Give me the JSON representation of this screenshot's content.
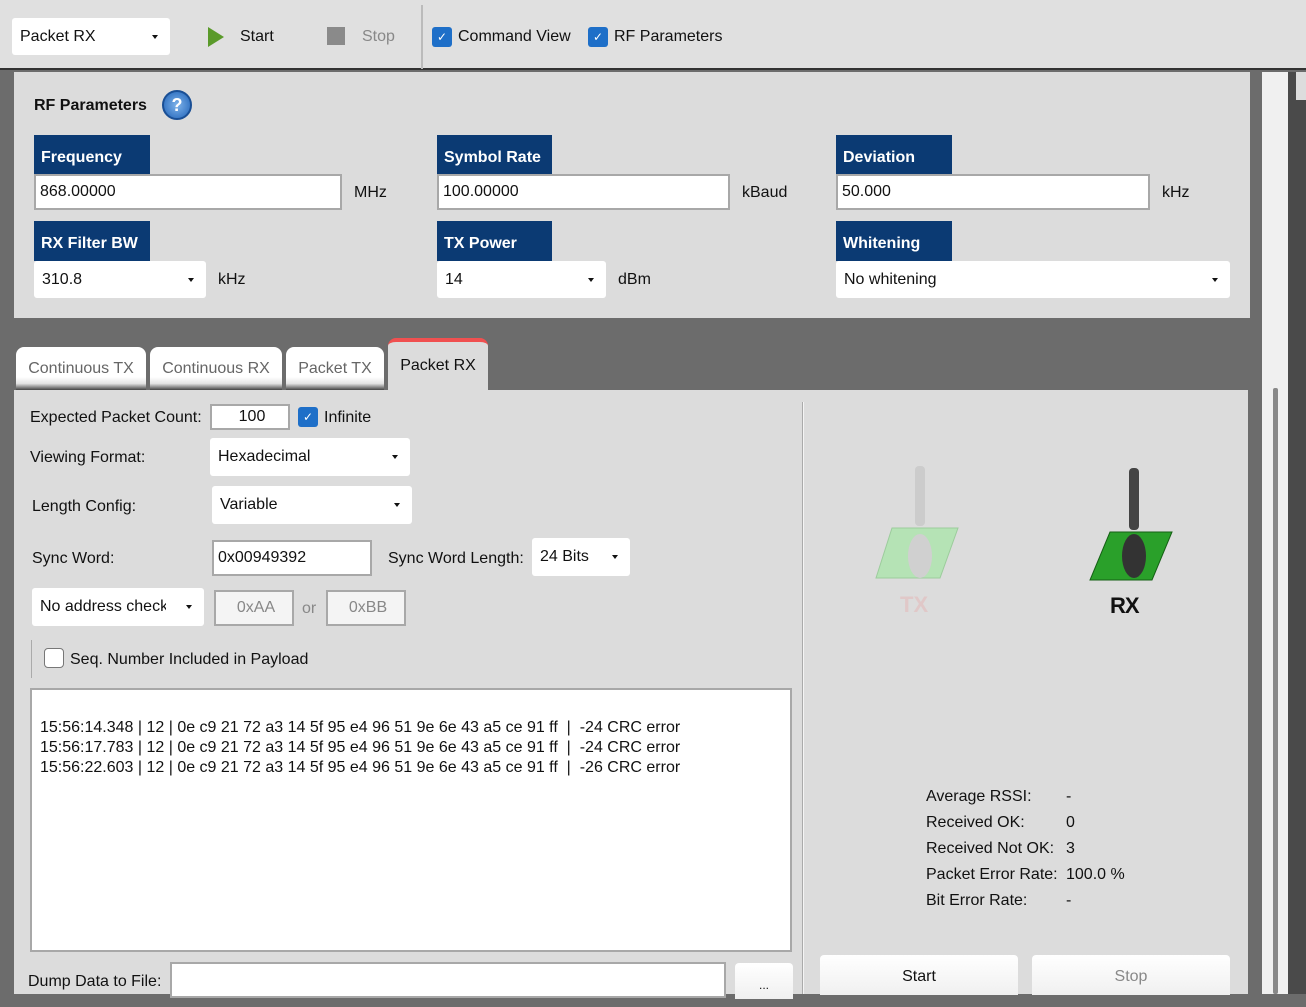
{
  "toolbar": {
    "mode": "Packet RX",
    "start": "Start",
    "stop": "Stop",
    "command_view": "Command View",
    "rf_parameters": "RF Parameters",
    "command_view_checked": true,
    "rf_parameters_checked": true
  },
  "rf": {
    "title": "RF Parameters",
    "frequency": {
      "label": "Frequency",
      "value": "868.00000",
      "unit": "MHz"
    },
    "symbol_rate": {
      "label": "Symbol Rate",
      "value": "100.00000",
      "unit": "kBaud"
    },
    "deviation": {
      "label": "Deviation",
      "value": "50.000",
      "unit": "kHz"
    },
    "rx_filter_bw": {
      "label": "RX Filter BW",
      "value": "310.8",
      "unit": "kHz"
    },
    "tx_power": {
      "label": "TX Power",
      "value": "14",
      "unit": "dBm"
    },
    "whitening": {
      "label": "Whitening",
      "value": "No whitening"
    }
  },
  "tabs": [
    "Continuous TX",
    "Continuous RX",
    "Packet TX",
    "Packet RX"
  ],
  "active_tab": "Packet RX",
  "packet_rx": {
    "expected_count_label": "Expected Packet Count:",
    "expected_count": "100",
    "infinite": "Infinite",
    "infinite_checked": true,
    "viewing_format_label": "Viewing Format:",
    "viewing_format": "Hexadecimal",
    "length_config_label": "Length Config:",
    "length_config": "Variable",
    "sync_word_label": "Sync Word:",
    "sync_word": "0x00949392",
    "sync_word_length_label": "Sync Word Length:",
    "sync_word_length": "24 Bits",
    "address_check": "No address check",
    "addr1": "0xAA",
    "or": "or",
    "addr2": "0xBB",
    "seq_number": "Seq. Number Included in Payload",
    "seq_number_checked": false,
    "log": [
      "15:56:14.348 | 12 | 0e c9 21 72 a3 14 5f 95 e4 96 51 9e 6e 43 a5 ce 91 ff  |  -24 CRC error",
      "15:56:17.783 | 12 | 0e c9 21 72 a3 14 5f 95 e4 96 51 9e 6e 43 a5 ce 91 ff  |  -24 CRC error",
      "15:56:22.603 | 12 | 0e c9 21 72 a3 14 5f 95 e4 96 51 9e 6e 43 a5 ce 91 ff  |  -26 CRC error"
    ],
    "dump_label": "Dump Data to File:",
    "dump_value": "",
    "browse": "...",
    "tx_label": "TX",
    "rx_label": "RX",
    "stats": [
      {
        "label": "Average RSSI:",
        "value": "-"
      },
      {
        "label": "Received OK:",
        "value": "0"
      },
      {
        "label": "Received Not OK:",
        "value": "3"
      },
      {
        "label": "Packet Error Rate:",
        "value": "100.0 %"
      },
      {
        "label": "Bit Error Rate:",
        "value": "-"
      }
    ],
    "start": "Start",
    "stop": "Stop"
  }
}
